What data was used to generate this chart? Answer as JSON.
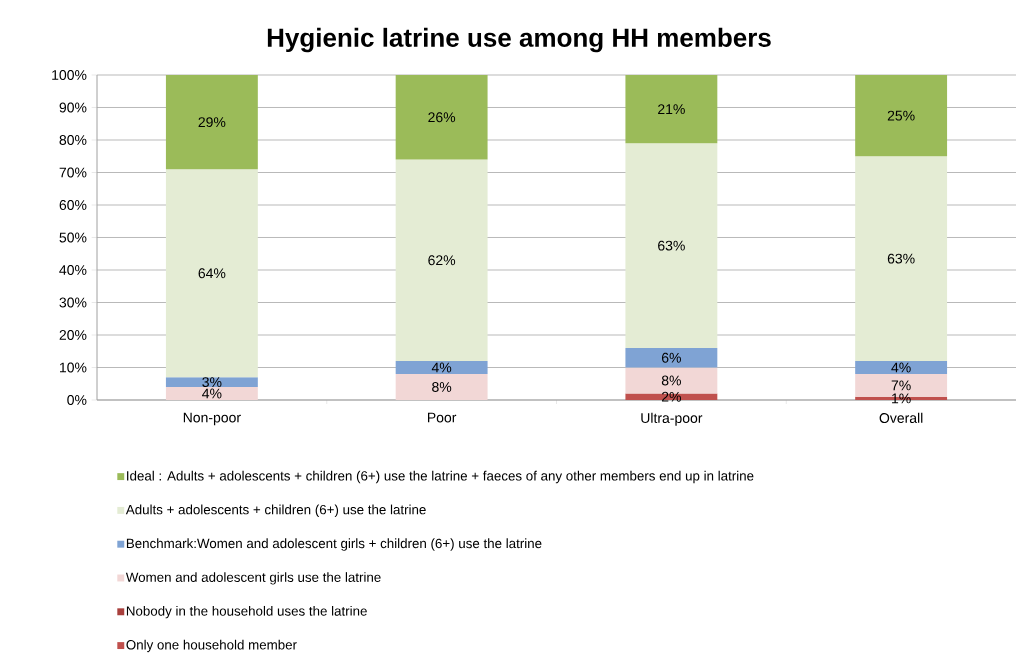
{
  "chart_data": {
    "type": "bar",
    "title": "Hygienic latrine use among HH members",
    "categories": [
      "Non-poor",
      "Poor",
      "Ultra-poor",
      "Overall"
    ],
    "stacked": true,
    "series": [
      {
        "name": "Only one household member",
        "color": "#c0504d",
        "values": [
          null,
          null,
          2,
          1
        ],
        "value_labels": [
          null,
          null,
          "2%",
          "1%"
        ]
      },
      {
        "name": "Nobody in the household uses the latrine",
        "color": "#a9403d",
        "values": [
          null,
          null,
          null,
          null
        ]
      },
      {
        "name": "Women and adolescent girls use the latrine",
        "color": "#f2d7d6",
        "values": [
          4,
          8,
          8,
          7
        ],
        "value_labels": [
          "4%",
          "8%",
          "8%",
          "7%"
        ]
      },
      {
        "name": "Benchmark:Women and adolescent girls + children (6+) use the latrine",
        "color": "#7fa3d4",
        "values": [
          3,
          4,
          6,
          4
        ],
        "value_labels": [
          "3%",
          "4%",
          "6%",
          "4%"
        ]
      },
      {
        "name": "Adults + adolescents + children (6+) use the latrine",
        "color": "#e4ecd4",
        "values": [
          64,
          62,
          63,
          63
        ],
        "value_labels": [
          "64%",
          "62%",
          "63%",
          "63%"
        ]
      },
      {
        "name": "Ideal : Adults + adolescents + children (6+) use the latrine + faeces of any other members end up in latrine",
        "color": "#9bbb59",
        "values": [
          29,
          26,
          21,
          25
        ],
        "value_labels": [
          "29%",
          "26%",
          "21%",
          "25%"
        ]
      }
    ],
    "ylim": [
      0,
      100
    ],
    "yticks": [
      {
        "value": 0,
        "label": "0%"
      },
      {
        "value": 10,
        "label": "10%"
      },
      {
        "value": 20,
        "label": "20%"
      },
      {
        "value": 30,
        "label": "30%"
      },
      {
        "value": 40,
        "label": "40%"
      },
      {
        "value": 50,
        "label": "50%"
      },
      {
        "value": 60,
        "label": "60%"
      },
      {
        "value": 70,
        "label": "70%"
      },
      {
        "value": 80,
        "label": "80%"
      },
      {
        "value": 90,
        "label": "90%"
      },
      {
        "value": 100,
        "label": "100%"
      }
    ],
    "grid": "y",
    "legend": "bottom"
  }
}
